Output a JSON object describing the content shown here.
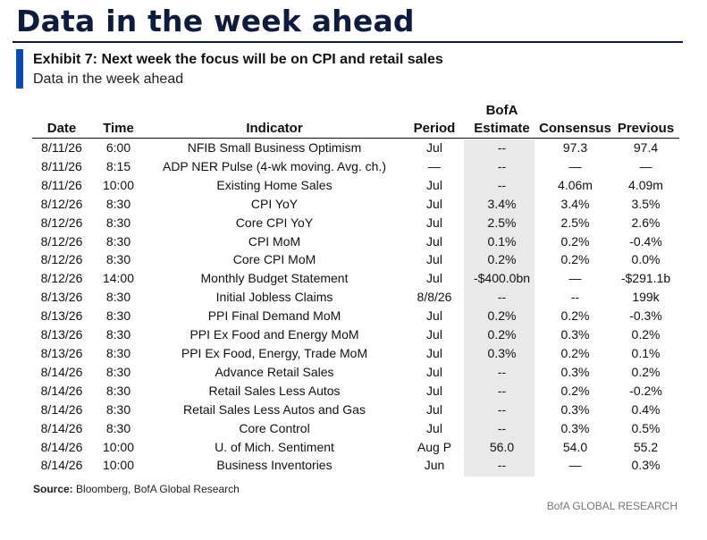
{
  "page": {
    "title": "Data in the week ahead",
    "exhibit_title": "Exhibit 7: Next week the focus will be on CPI and retail sales",
    "exhibit_subtitle": "Data in the week ahead",
    "accent_color": "#0a4bb3",
    "title_color": "#0d1b3e"
  },
  "table": {
    "headers": {
      "date": "Date",
      "time": "Time",
      "indicator": "Indicator",
      "period": "Period",
      "estimate_line1": "BofA",
      "estimate_line2": "Estimate",
      "consensus": "Consensus",
      "previous": "Previous"
    },
    "rows": [
      {
        "date": "8/11/26",
        "time": "6:00",
        "indicator": "NFIB Small Business Optimism",
        "period": "Jul",
        "estimate": "--",
        "consensus": "97.3",
        "previous": "97.4"
      },
      {
        "date": "8/11/26",
        "time": "8:15",
        "indicator": "ADP NER Pulse (4-wk moving. Avg. ch.)",
        "period": "—",
        "estimate": "--",
        "consensus": "—",
        "previous": "—"
      },
      {
        "date": "8/11/26",
        "time": "10:00",
        "indicator": "Existing Home Sales",
        "period": "Jul",
        "estimate": "--",
        "consensus": "4.06m",
        "previous": "4.09m"
      },
      {
        "date": "8/12/26",
        "time": "8:30",
        "indicator": "CPI YoY",
        "period": "Jul",
        "estimate": "3.4%",
        "consensus": "3.4%",
        "previous": "3.5%"
      },
      {
        "date": "8/12/26",
        "time": "8:30",
        "indicator": "Core CPI YoY",
        "period": "Jul",
        "estimate": "2.5%",
        "consensus": "2.5%",
        "previous": "2.6%"
      },
      {
        "date": "8/12/26",
        "time": "8:30",
        "indicator": "CPI MoM",
        "period": "Jul",
        "estimate": "0.1%",
        "consensus": "0.2%",
        "previous": "-0.4%"
      },
      {
        "date": "8/12/26",
        "time": "8:30",
        "indicator": "Core CPI MoM",
        "period": "Jul",
        "estimate": "0.2%",
        "consensus": "0.2%",
        "previous": "0.0%"
      },
      {
        "date": "8/12/26",
        "time": "14:00",
        "indicator": "Monthly Budget Statement",
        "period": "Jul",
        "estimate": "-$400.0bn",
        "consensus": "—",
        "previous": "-$291.1b"
      },
      {
        "date": "8/13/26",
        "time": "8:30",
        "indicator": "Initial Jobless Claims",
        "period": "8/8/26",
        "estimate": "--",
        "consensus": "--",
        "previous": "199k"
      },
      {
        "date": "8/13/26",
        "time": "8:30",
        "indicator": "PPI Final Demand MoM",
        "period": "Jul",
        "estimate": "0.2%",
        "consensus": "0.2%",
        "previous": "-0.3%"
      },
      {
        "date": "8/13/26",
        "time": "8:30",
        "indicator": "PPI Ex Food and Energy MoM",
        "period": "Jul",
        "estimate": "0.2%",
        "consensus": "0.3%",
        "previous": "0.2%"
      },
      {
        "date": "8/13/26",
        "time": "8:30",
        "indicator": "PPI Ex Food, Energy, Trade MoM",
        "period": "Jul",
        "estimate": "0.3%",
        "consensus": "0.2%",
        "previous": "0.1%"
      },
      {
        "date": "8/14/26",
        "time": "8:30",
        "indicator": "Advance Retail Sales",
        "period": "Jul",
        "estimate": "--",
        "consensus": "0.3%",
        "previous": "0.2%"
      },
      {
        "date": "8/14/26",
        "time": "8:30",
        "indicator": "Retail Sales Less Autos",
        "period": "Jul",
        "estimate": "--",
        "consensus": "0.2%",
        "previous": "-0.2%"
      },
      {
        "date": "8/14/26",
        "time": "8:30",
        "indicator": "Retail Sales Less Autos and Gas",
        "period": "Jul",
        "estimate": "--",
        "consensus": "0.3%",
        "previous": "0.4%"
      },
      {
        "date": "8/14/26",
        "time": "8:30",
        "indicator": "Core Control",
        "period": "Jul",
        "estimate": "--",
        "consensus": "0.3%",
        "previous": "0.5%"
      },
      {
        "date": "8/14/26",
        "time": "10:00",
        "indicator": "U. of Mich. Sentiment",
        "period": "Aug P",
        "estimate": "56.0",
        "consensus": "54.0",
        "previous": "55.2"
      },
      {
        "date": "8/14/26",
        "time": "10:00",
        "indicator": "Business Inventories",
        "period": "Jun",
        "estimate": "--",
        "consensus": "—",
        "previous": "0.3%"
      }
    ]
  },
  "footer": {
    "source_label": "Source:",
    "source_text": " Bloomberg, BofA Global Research",
    "brand": "BofA GLOBAL RESEARCH"
  }
}
